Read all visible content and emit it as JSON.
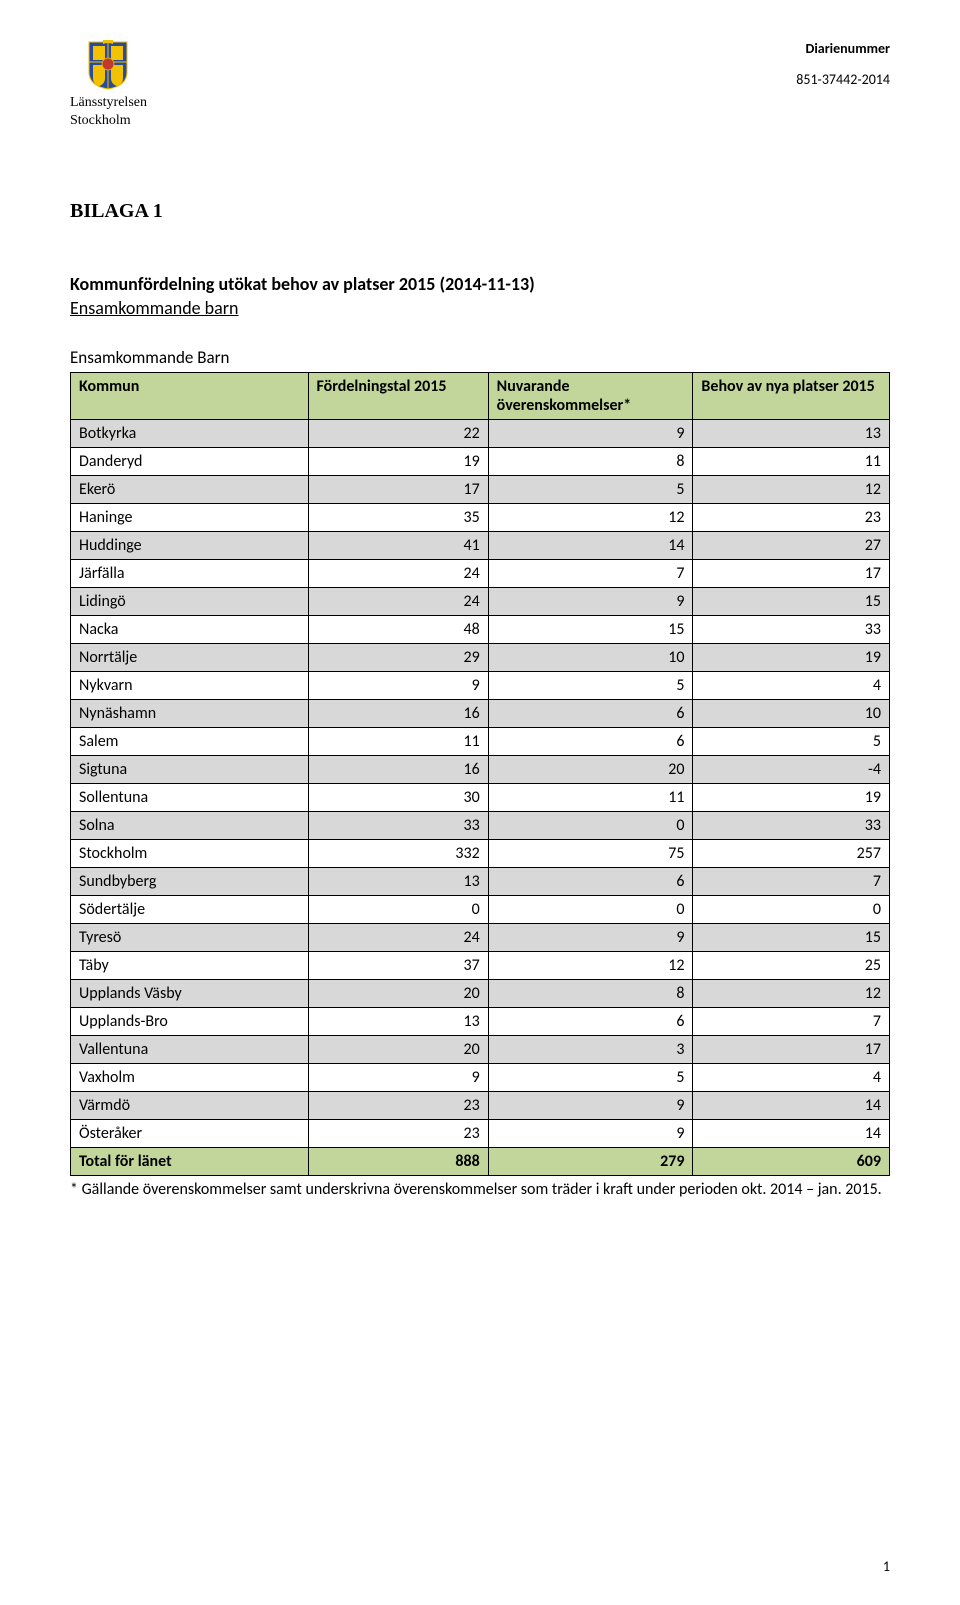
{
  "header": {
    "org_line1": "Länsstyrelsen",
    "org_line2": "Stockholm",
    "diarie_label": "Diarienummer",
    "diarie_value": "851-37442-2014"
  },
  "bilaga": "BILAGA 1",
  "title": "Kommunfördelning utökat behov av platser 2015 (2014-11-13)",
  "subtitle": "Ensamkommande barn",
  "table_caption": "Ensamkommande Barn",
  "table": {
    "header_bg": "#c2d59b",
    "row_alt_bg": "#d8d8d8",
    "total_bg": "#c2d59b",
    "columns": [
      "Kommun",
      "Fördelningstal 2015",
      "Nuvarande överenskommelser*",
      "Behov av nya platser 2015"
    ],
    "rows": [
      [
        "Botkyrka",
        22,
        9,
        13
      ],
      [
        "Danderyd",
        19,
        8,
        11
      ],
      [
        "Ekerö",
        17,
        5,
        12
      ],
      [
        "Haninge",
        35,
        12,
        23
      ],
      [
        "Huddinge",
        41,
        14,
        27
      ],
      [
        "Järfälla",
        24,
        7,
        17
      ],
      [
        "Lidingö",
        24,
        9,
        15
      ],
      [
        "Nacka",
        48,
        15,
        33
      ],
      [
        "Norrtälje",
        29,
        10,
        19
      ],
      [
        "Nykvarn",
        9,
        5,
        4
      ],
      [
        "Nynäshamn",
        16,
        6,
        10
      ],
      [
        "Salem",
        11,
        6,
        5
      ],
      [
        "Sigtuna",
        16,
        20,
        -4
      ],
      [
        "Sollentuna",
        30,
        11,
        19
      ],
      [
        "Solna",
        33,
        0,
        33
      ],
      [
        "Stockholm",
        332,
        75,
        257
      ],
      [
        "Sundbyberg",
        13,
        6,
        7
      ],
      [
        "Södertälje",
        0,
        0,
        0
      ],
      [
        "Tyresö",
        24,
        9,
        15
      ],
      [
        "Täby",
        37,
        12,
        25
      ],
      [
        "Upplands Väsby",
        20,
        8,
        12
      ],
      [
        "Upplands-Bro",
        13,
        6,
        7
      ],
      [
        "Vallentuna",
        20,
        3,
        17
      ],
      [
        "Vaxholm",
        9,
        5,
        4
      ],
      [
        "Värmdö",
        23,
        9,
        14
      ],
      [
        "Österåker",
        23,
        9,
        14
      ]
    ],
    "total": [
      "Total för länet",
      888,
      279,
      609
    ]
  },
  "footnote": "* Gällande överenskommelser samt underskrivna överenskommelser som träder i kraft under perioden okt. 2014 – jan. 2015.",
  "page_number": "1",
  "crest_colors": {
    "blue": "#2a4b9b",
    "yellow": "#f2c200",
    "red": "#c0392b"
  }
}
